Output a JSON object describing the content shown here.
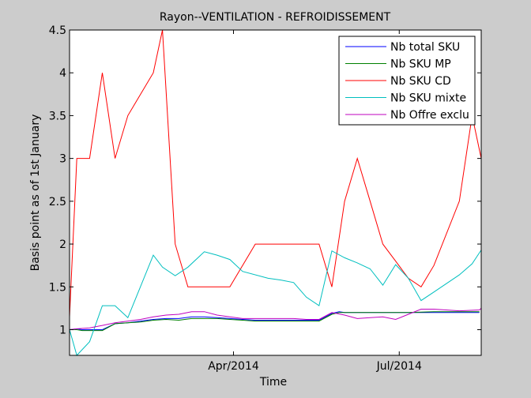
{
  "chart_data": {
    "type": "line",
    "title": "Rayon--VENTILATION - REFROIDISSEMENT",
    "xlabel": "Time",
    "ylabel": "Basis point as of 1st January",
    "xlim": [
      "2014-01-01",
      "2014-08-15"
    ],
    "ylim": [
      0.7,
      4.5
    ],
    "yticks": [
      1,
      1.5,
      2,
      2.5,
      3,
      3.5,
      4,
      4.5
    ],
    "ytick_labels": [
      "1",
      "1.5",
      "2",
      "2.5",
      "3",
      "3.5",
      "4",
      "4.5"
    ],
    "xticks": [
      "2014-04-01",
      "2014-07-01"
    ],
    "xtick_labels": [
      "Apr/2014",
      "Jul/2014"
    ],
    "grid": false,
    "legend_position": "top-right",
    "series": [
      {
        "name": "Nb total SKU",
        "color": "#0000ff",
        "x": [
          "2014-01-01",
          "2014-01-05",
          "2014-01-08",
          "2014-01-12",
          "2014-01-15",
          "2014-01-19",
          "2014-01-26",
          "2014-02-02",
          "2014-02-09",
          "2014-02-16",
          "2014-02-23",
          "2014-03-02",
          "2014-03-09",
          "2014-03-16",
          "2014-03-23",
          "2014-03-30",
          "2014-04-06",
          "2014-04-13",
          "2014-04-20",
          "2014-04-27",
          "2014-05-04",
          "2014-05-11",
          "2014-05-18",
          "2014-05-25",
          "2014-05-29",
          "2014-06-01",
          "2014-06-08",
          "2014-06-15",
          "2014-06-22",
          "2014-06-29",
          "2014-07-06",
          "2014-07-20",
          "2014-08-03",
          "2014-08-14"
        ],
        "values": [
          1.0,
          1.01,
          1.0,
          1.0,
          1.0,
          1.0,
          1.07,
          1.08,
          1.1,
          1.12,
          1.13,
          1.13,
          1.15,
          1.15,
          1.14,
          1.13,
          1.12,
          1.11,
          1.11,
          1.11,
          1.11,
          1.11,
          1.11,
          1.19,
          1.21,
          1.2,
          1.2,
          1.2,
          1.2,
          1.2,
          1.2,
          1.2,
          1.2,
          1.2
        ]
      },
      {
        "name": "Nb SKU MP",
        "color": "#008000",
        "x": [
          "2014-01-01",
          "2014-01-05",
          "2014-01-08",
          "2014-01-12",
          "2014-01-15",
          "2014-01-19",
          "2014-01-26",
          "2014-02-02",
          "2014-02-09",
          "2014-02-16",
          "2014-02-23",
          "2014-03-02",
          "2014-03-09",
          "2014-03-16",
          "2014-03-23",
          "2014-03-30",
          "2014-04-06",
          "2014-04-13",
          "2014-04-20",
          "2014-04-27",
          "2014-05-04",
          "2014-05-11",
          "2014-05-18",
          "2014-05-25",
          "2014-05-29",
          "2014-06-01",
          "2014-06-08",
          "2014-06-15",
          "2014-06-22",
          "2014-06-29",
          "2014-07-06",
          "2014-07-20",
          "2014-08-03",
          "2014-08-14"
        ],
        "values": [
          1.0,
          1.0,
          0.99,
          0.99,
          0.99,
          0.99,
          1.07,
          1.08,
          1.09,
          1.11,
          1.12,
          1.11,
          1.13,
          1.13,
          1.13,
          1.12,
          1.11,
          1.1,
          1.1,
          1.1,
          1.1,
          1.1,
          1.1,
          1.18,
          1.2,
          1.2,
          1.2,
          1.2,
          1.2,
          1.2,
          1.2,
          1.21,
          1.21,
          1.21
        ]
      },
      {
        "name": "Nb SKU CD",
        "color": "#ff0000",
        "x": [
          "2014-01-01",
          "2014-01-05",
          "2014-01-12",
          "2014-01-19",
          "2014-01-26",
          "2014-02-02",
          "2014-02-16",
          "2014-02-21",
          "2014-02-28",
          "2014-03-07",
          "2014-03-30",
          "2014-04-13",
          "2014-05-18",
          "2014-05-25",
          "2014-06-01",
          "2014-06-08",
          "2014-06-15",
          "2014-06-22",
          "2014-06-29",
          "2014-07-06",
          "2014-07-13",
          "2014-07-20",
          "2014-08-03",
          "2014-08-10",
          "2014-08-15"
        ],
        "values": [
          1.15,
          3.0,
          3.0,
          4.0,
          3.0,
          3.5,
          4.0,
          4.5,
          2.0,
          1.5,
          1.5,
          2.0,
          2.0,
          1.5,
          2.5,
          3.0,
          2.5,
          2.0,
          1.8,
          1.6,
          1.5,
          1.75,
          2.5,
          3.5,
          3.0
        ]
      },
      {
        "name": "Nb SKU mixte",
        "color": "#00bfbf",
        "x": [
          "2014-01-01",
          "2014-01-05",
          "2014-01-12",
          "2014-01-19",
          "2014-01-26",
          "2014-02-02",
          "2014-02-16",
          "2014-02-21",
          "2014-02-28",
          "2014-03-07",
          "2014-03-16",
          "2014-03-23",
          "2014-03-30",
          "2014-04-06",
          "2014-04-20",
          "2014-04-27",
          "2014-05-04",
          "2014-05-11",
          "2014-05-18",
          "2014-05-25",
          "2014-06-01",
          "2014-06-08",
          "2014-06-15",
          "2014-06-22",
          "2014-06-29",
          "2014-07-06",
          "2014-07-13",
          "2014-07-20",
          "2014-08-03",
          "2014-08-10",
          "2014-08-15"
        ],
        "values": [
          1.0,
          0.7,
          0.86,
          1.28,
          1.28,
          1.14,
          1.87,
          1.73,
          1.63,
          1.73,
          1.91,
          1.87,
          1.82,
          1.68,
          1.6,
          1.58,
          1.55,
          1.38,
          1.28,
          1.92,
          1.84,
          1.78,
          1.71,
          1.52,
          1.76,
          1.6,
          1.34,
          1.44,
          1.64,
          1.77,
          1.93
        ]
      },
      {
        "name": "Nb Offre exclu",
        "color": "#bf00bf",
        "x": [
          "2014-01-01",
          "2014-01-05",
          "2014-01-12",
          "2014-01-19",
          "2014-01-26",
          "2014-02-02",
          "2014-02-09",
          "2014-02-16",
          "2014-02-23",
          "2014-03-02",
          "2014-03-09",
          "2014-03-16",
          "2014-03-23",
          "2014-03-30",
          "2014-04-06",
          "2014-04-13",
          "2014-04-20",
          "2014-04-27",
          "2014-05-04",
          "2014-05-11",
          "2014-05-18",
          "2014-05-25",
          "2014-06-01",
          "2014-06-08",
          "2014-06-15",
          "2014-06-22",
          "2014-06-29",
          "2014-07-06",
          "2014-07-13",
          "2014-07-20",
          "2014-08-03",
          "2014-08-14",
          "2014-08-15"
        ],
        "values": [
          1.0,
          1.01,
          1.02,
          1.05,
          1.08,
          1.1,
          1.12,
          1.15,
          1.17,
          1.18,
          1.21,
          1.21,
          1.17,
          1.15,
          1.13,
          1.13,
          1.13,
          1.13,
          1.13,
          1.12,
          1.12,
          1.2,
          1.17,
          1.13,
          1.14,
          1.15,
          1.12,
          1.18,
          1.24,
          1.24,
          1.22,
          1.23,
          1.25
        ]
      }
    ]
  }
}
